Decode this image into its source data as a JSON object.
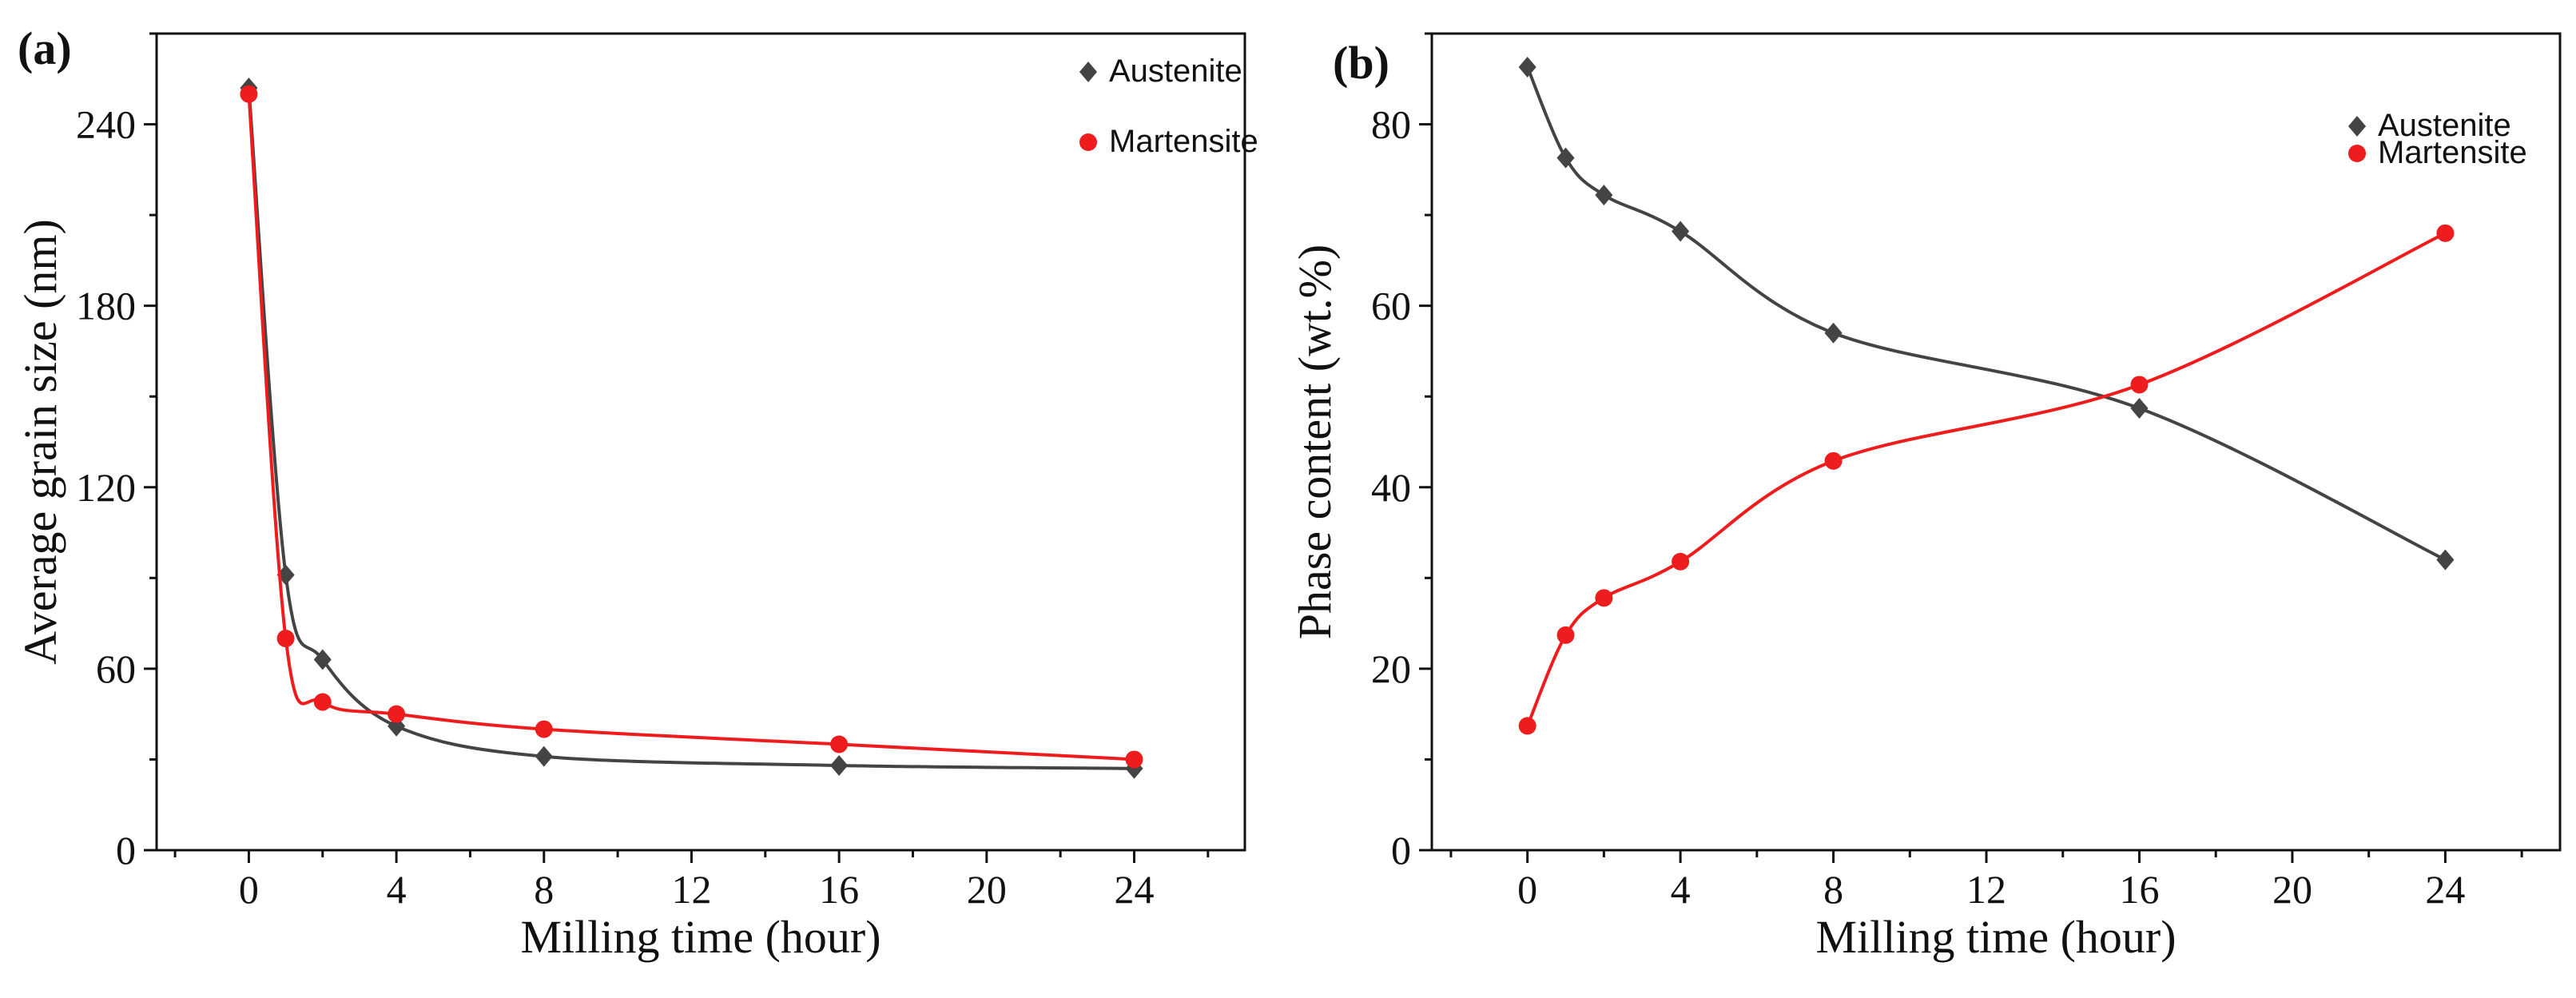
{
  "chart_data": [
    {
      "type": "scatter",
      "panel_label": "(a)",
      "xlabel": "Milling time (hour)",
      "ylabel": "Average grain size (nm)",
      "xlim": [
        -2.5,
        27
      ],
      "ylim": [
        0,
        270
      ],
      "xticks": [
        0,
        4,
        8,
        12,
        16,
        20,
        24
      ],
      "yticks": [
        0,
        60,
        120,
        180,
        240
      ],
      "x": [
        0,
        1,
        2,
        4,
        8,
        16,
        24
      ],
      "series": [
        {
          "name": "Austenite",
          "marker": "diamond",
          "color": "#444444",
          "values": [
            252,
            91,
            63,
            41,
            31,
            28,
            27
          ]
        },
        {
          "name": "Martensite",
          "marker": "circle",
          "color": "#ee1c1c",
          "values": [
            250,
            70,
            49,
            45,
            40,
            35,
            30
          ]
        }
      ],
      "legend": "top-right",
      "fit_lines": true
    },
    {
      "type": "scatter",
      "panel_label": "(b)",
      "xlabel": "Milling time (hour)",
      "ylabel": "Phase content (wt.%)",
      "xlim": [
        -2.5,
        27
      ],
      "ylim": [
        0,
        90
      ],
      "xticks": [
        0,
        4,
        8,
        12,
        16,
        20,
        24
      ],
      "yticks": [
        0,
        20,
        40,
        60,
        80
      ],
      "x": [
        0,
        1,
        2,
        4,
        8,
        16,
        24
      ],
      "series": [
        {
          "name": "Austenite",
          "marker": "diamond",
          "color": "#444444",
          "values": [
            86.3,
            76.3,
            72.2,
            68.2,
            57.0,
            48.7,
            32.0
          ]
        },
        {
          "name": "Martensite",
          "marker": "circle",
          "color": "#ee1c1c",
          "values": [
            13.7,
            23.7,
            27.8,
            31.8,
            42.9,
            51.3,
            68.0
          ]
        }
      ],
      "legend": "top-right",
      "fit_lines": true
    }
  ]
}
